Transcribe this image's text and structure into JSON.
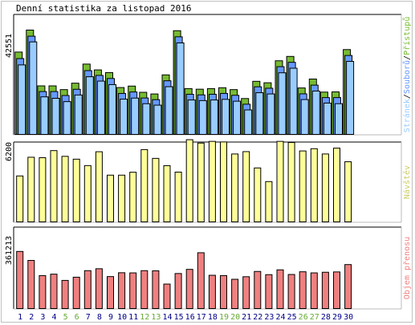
{
  "title": "Denní statistika za listopad 2016",
  "chart_data": [
    {
      "type": "bar",
      "panel": "hits",
      "x": [
        "1",
        "2",
        "3",
        "4",
        "5",
        "6",
        "7",
        "8",
        "9",
        "10",
        "11",
        "12",
        "13",
        "14",
        "15",
        "16",
        "17",
        "18",
        "19",
        "20",
        "21",
        "22",
        "23",
        "24",
        "25",
        "26",
        "27",
        "28",
        "29",
        "30"
      ],
      "weekend_days": [
        "5",
        "6",
        "12",
        "13",
        "19",
        "20",
        "26",
        "27"
      ],
      "ytick": "42551",
      "ymax": 42551,
      "series": [
        {
          "name": "Přístupů",
          "color": "#77bb33",
          "values": [
            39700,
            50300,
            23400,
            23400,
            21600,
            24700,
            33900,
            31100,
            29800,
            22600,
            23300,
            20300,
            19500,
            28700,
            50000,
            22100,
            21800,
            22100,
            22500,
            21600,
            17300,
            25600,
            24900,
            35500,
            37600,
            22400,
            26700,
            20400,
            20500,
            40900
          ]
        },
        {
          "name": "Souborů",
          "color": "#6699ff",
          "values": [
            38100,
            48900,
            22200,
            22200,
            20300,
            23300,
            32300,
            30000,
            28500,
            21300,
            22000,
            19100,
            18300,
            27400,
            48600,
            20900,
            20600,
            20900,
            21300,
            20400,
            16100,
            24500,
            23800,
            34200,
            36300,
            21100,
            25300,
            19300,
            19300,
            39600
          ]
        },
        {
          "name": "Stránek",
          "color": "#99ccff",
          "values": [
            36600,
            47700,
            21200,
            20500,
            18900,
            22100,
            30900,
            28800,
            27100,
            20100,
            20600,
            17900,
            17200,
            26100,
            47200,
            19700,
            19400,
            19700,
            20000,
            19100,
            14900,
            23200,
            22600,
            32800,
            35000,
            19900,
            24000,
            18200,
            17900,
            38300
          ]
        }
      ]
    },
    {
      "type": "bar",
      "panel": "visits",
      "x": [
        "1",
        "2",
        "3",
        "4",
        "5",
        "6",
        "7",
        "8",
        "9",
        "10",
        "11",
        "12",
        "13",
        "14",
        "15",
        "16",
        "17",
        "18",
        "19",
        "20",
        "21",
        "22",
        "23",
        "24",
        "25",
        "26",
        "27",
        "28",
        "29",
        "30"
      ],
      "ytick": "6200",
      "ymax": 6200,
      "series": [
        {
          "name": "Návštěv",
          "color": "#ffff99",
          "values": [
            4080,
            5740,
            5700,
            6330,
            5820,
            5570,
            5000,
            6230,
            4150,
            4150,
            4410,
            6420,
            5640,
            4990,
            4420,
            7300,
            7000,
            7150,
            7100,
            6030,
            6240,
            4790,
            3580,
            7150,
            7050,
            6300,
            6500,
            6030,
            6550,
            5340
          ]
        }
      ]
    },
    {
      "type": "bar",
      "panel": "traffic",
      "x": [
        "1",
        "2",
        "3",
        "4",
        "5",
        "6",
        "7",
        "8",
        "9",
        "10",
        "11",
        "12",
        "13",
        "14",
        "15",
        "16",
        "17",
        "18",
        "19",
        "20",
        "21",
        "22",
        "23",
        "24",
        "25",
        "26",
        "27",
        "28",
        "29",
        "30"
      ],
      "ytick": "361213",
      "ymax": 361213,
      "series": [
        {
          "name": "Objem přenosu",
          "color": "#f08080",
          "values": [
            357000,
            301000,
            206000,
            215000,
            176000,
            196000,
            237000,
            249000,
            200000,
            224000,
            223000,
            237000,
            236000,
            153000,
            219000,
            245000,
            349000,
            208000,
            206000,
            183000,
            199000,
            232000,
            212000,
            242000,
            213000,
            230000,
            223000,
            227000,
            229000,
            275000
          ]
        }
      ]
    }
  ],
  "right_labels": {
    "hits": [
      {
        "text": "Stránek",
        "color": "#99ccff"
      },
      {
        "text": "/",
        "color": "#000000"
      },
      {
        "text": "Souborů",
        "color": "#6699ff"
      },
      {
        "text": "/",
        "color": "#000000"
      },
      {
        "text": "Přístupů",
        "color": "#77bb33"
      }
    ],
    "visits": [
      {
        "text": "Návštěv",
        "color": "#cccc66"
      }
    ],
    "traffic": [
      {
        "text": "Objem přenosu",
        "color": "#f08080"
      }
    ]
  },
  "day_label_color": "#000088",
  "weekend_label_color": "#66aa33"
}
